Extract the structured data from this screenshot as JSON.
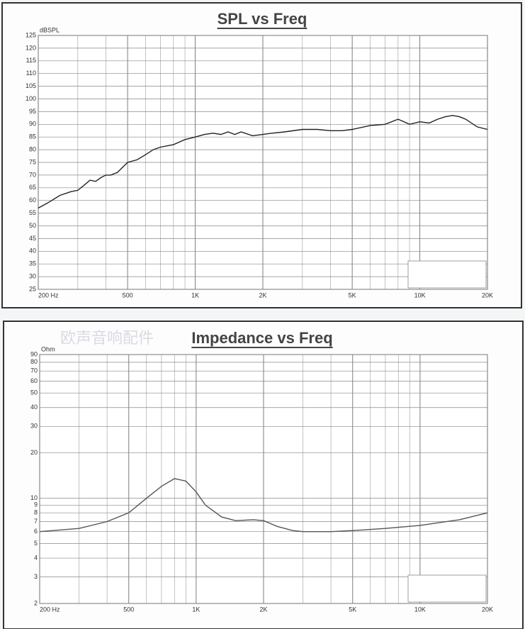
{
  "chart_data": [
    {
      "type": "line",
      "title": "SPL vs Freq",
      "y_label": "dBSPL",
      "log_x": true,
      "grid": true,
      "x": [
        200,
        220,
        250,
        280,
        300,
        320,
        340,
        360,
        380,
        400,
        420,
        450,
        500,
        550,
        600,
        650,
        700,
        800,
        900,
        1000,
        1100,
        1200,
        1300,
        1400,
        1500,
        1600,
        1800,
        2000,
        2200,
        2500,
        3000,
        3500,
        4000,
        4500,
        5000,
        6000,
        7000,
        8000,
        9000,
        10000,
        11000,
        12000,
        13000,
        14000,
        15000,
        16000,
        18000,
        20000
      ],
      "series": [
        {
          "name": "SPL",
          "color": "#222222",
          "values": [
            57,
            59,
            62,
            63.5,
            64,
            66,
            68,
            67.5,
            69,
            70,
            70,
            71,
            75,
            76,
            78,
            80,
            81,
            82,
            84,
            85,
            86,
            86.5,
            86,
            87,
            86,
            87,
            85.5,
            86,
            86.5,
            87,
            88,
            88,
            87.5,
            87.5,
            88,
            89.5,
            90,
            92,
            90,
            91,
            90.5,
            92,
            93,
            93.5,
            93,
            92,
            89,
            88
          ]
        }
      ],
      "xlim": [
        200,
        20000
      ],
      "xticks": [
        {
          "value": 200,
          "label": "200 Hz"
        },
        500,
        {
          "value": 1000,
          "label": "1K"
        },
        {
          "value": 2000,
          "label": "2K"
        },
        {
          "value": 5000,
          "label": "5K"
        },
        {
          "value": 10000,
          "label": "10K"
        },
        {
          "value": 20000,
          "label": "20K"
        }
      ],
      "ylim": [
        25,
        125
      ],
      "yticks": [
        25,
        30,
        35,
        40,
        45,
        50,
        55,
        60,
        65,
        70,
        75,
        80,
        85,
        90,
        95,
        100,
        105,
        110,
        115,
        120,
        125
      ]
    },
    {
      "type": "line",
      "title": "Impedance vs Freq",
      "y_label": "Ohm",
      "watermark": "欧声音响配件",
      "log_x": true,
      "log_y": true,
      "grid": true,
      "x": [
        200,
        300,
        400,
        500,
        600,
        700,
        800,
        900,
        1000,
        1100,
        1300,
        1500,
        1800,
        2000,
        2300,
        2700,
        3000,
        4000,
        5000,
        7000,
        10000,
        15000,
        20000
      ],
      "series": [
        {
          "name": "Impedance",
          "color": "#555555",
          "values": [
            6,
            6.3,
            7,
            8,
            10,
            12,
            13.5,
            13,
            11,
            9,
            7.5,
            7.1,
            7.2,
            7.1,
            6.5,
            6.1,
            6,
            6,
            6.1,
            6.3,
            6.6,
            7.2,
            8
          ]
        }
      ],
      "xlim": [
        200,
        20000
      ],
      "xticks": [
        {
          "value": 200,
          "label": "200 Hz"
        },
        500,
        {
          "value": 1000,
          "label": "1K"
        },
        {
          "value": 2000,
          "label": "2K"
        },
        {
          "value": 5000,
          "label": "5K"
        },
        {
          "value": 10000,
          "label": "10K"
        },
        {
          "value": 20000,
          "label": "20K"
        }
      ],
      "ylim": [
        2,
        90
      ],
      "yticks": [
        2,
        3,
        4,
        5,
        6,
        7,
        8,
        9,
        10,
        20,
        30,
        40,
        50,
        60,
        70,
        80,
        90
      ]
    }
  ]
}
